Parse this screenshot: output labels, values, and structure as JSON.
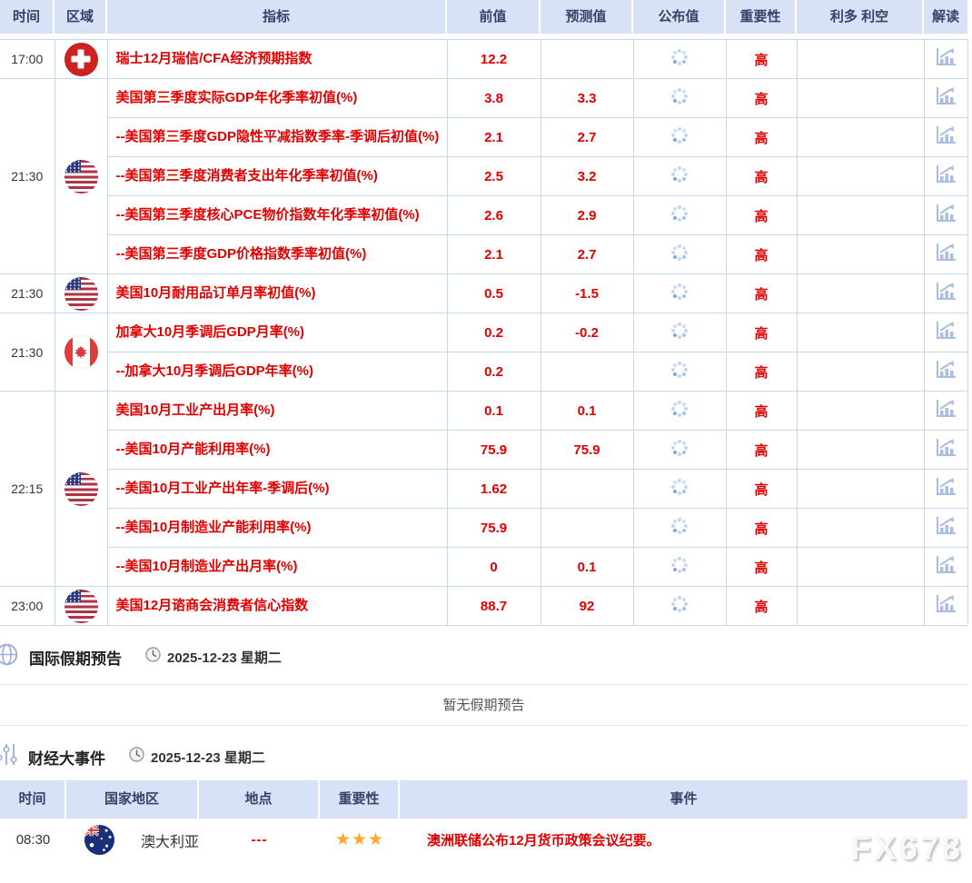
{
  "calendar": {
    "headers": [
      "时间",
      "区域",
      "指标",
      "前值",
      "预测值",
      "公布值",
      "重要性",
      "利多 利空",
      "解读"
    ],
    "groups": [
      {
        "time": "17:00",
        "flag": "switzerland-flag-icon",
        "items": [
          {
            "name": "瑞士12月瑞信/CFA经济预期指数",
            "prev": "12.2",
            "forecast": "",
            "importance": "高"
          }
        ]
      },
      {
        "time": "21:30",
        "flag": "us-flag-icon",
        "items": [
          {
            "name": "美国第三季度实际GDP年化季率初值(%)",
            "prev": "3.8",
            "forecast": "3.3",
            "importance": "高"
          },
          {
            "name": "--美国第三季度GDP隐性平减指数季率-季调后初值(%)",
            "prev": "2.1",
            "forecast": "2.7",
            "importance": "高"
          },
          {
            "name": "--美国第三季度消费者支出年化季率初值(%)",
            "prev": "2.5",
            "forecast": "3.2",
            "importance": "高"
          },
          {
            "name": "--美国第三季度核心PCE物价指数年化季率初值(%)",
            "prev": "2.6",
            "forecast": "2.9",
            "importance": "高"
          },
          {
            "name": "--美国第三季度GDP价格指数季率初值(%)",
            "prev": "2.1",
            "forecast": "2.7",
            "importance": "高"
          }
        ]
      },
      {
        "time": "21:30",
        "flag": "us-flag-icon",
        "items": [
          {
            "name": "美国10月耐用品订单月率初值(%)",
            "prev": "0.5",
            "forecast": "-1.5",
            "importance": "高"
          }
        ]
      },
      {
        "time": "21:30",
        "flag": "canada-flag-icon",
        "items": [
          {
            "name": "加拿大10月季调后GDP月率(%)",
            "prev": "0.2",
            "forecast": "-0.2",
            "importance": "高"
          },
          {
            "name": "--加拿大10月季调后GDP年率(%)",
            "prev": "0.2",
            "forecast": "",
            "importance": "高"
          }
        ]
      },
      {
        "time": "22:15",
        "flag": "us-flag-icon",
        "items": [
          {
            "name": "美国10月工业产出月率(%)",
            "prev": "0.1",
            "forecast": "0.1",
            "importance": "高"
          },
          {
            "name": "--美国10月产能利用率(%)",
            "prev": "75.9",
            "forecast": "75.9",
            "importance": "高"
          },
          {
            "name": "--美国10月工业产出年率-季调后(%)",
            "prev": "1.62",
            "forecast": "",
            "importance": "高"
          },
          {
            "name": "--美国10月制造业产能利用率(%)",
            "prev": "75.9",
            "forecast": "",
            "importance": "高"
          },
          {
            "name": "--美国10月制造业产出月率(%)",
            "prev": "0",
            "forecast": "0.1",
            "importance": "高"
          }
        ]
      },
      {
        "time": "23:00",
        "flag": "us-flag-icon",
        "items": [
          {
            "name": "美国12月谘商会消费者信心指数",
            "prev": "88.7",
            "forecast": "92",
            "importance": "高"
          }
        ]
      }
    ],
    "published_state": "loading"
  },
  "holiday": {
    "title": "国际假期预告",
    "date": "2025-12-23 星期二",
    "empty": "暂无假期预告"
  },
  "events": {
    "title": "财经大事件",
    "date": "2025-12-23 星期二",
    "headers": [
      "时间",
      "国家地区",
      "地点",
      "重要性",
      "事件"
    ],
    "rows": [
      {
        "time": "08:30",
        "country": "澳大利亚",
        "flag": "australia-flag-icon",
        "location": "---",
        "importance_stars": 3,
        "stars_display": "★★★",
        "event": "澳洲联储公布12月货币政策会议纪要。"
      }
    ]
  },
  "watermark": "FX678",
  "colors": {
    "accent_red": "#e00000",
    "header_bg": "#d8e2f7",
    "grid_border": "#c3d7f3",
    "star_orange": "#ffa726"
  }
}
